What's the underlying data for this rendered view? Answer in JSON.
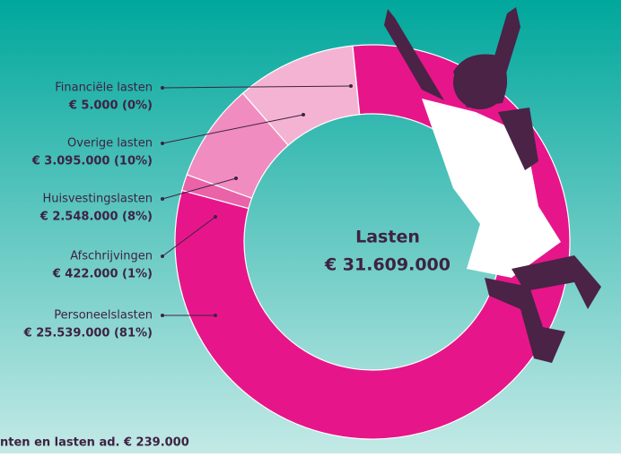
{
  "chart_data": {
    "type": "donut",
    "center_title": "Lasten",
    "total": 31609000,
    "total_label": "€ 31.609.000",
    "categories": [
      "Financiële lasten",
      "Overige lasten",
      "Huisvestingslasten",
      "Afschrijvingen",
      "Personeelslasten"
    ],
    "values": [
      5000,
      3095000,
      2548000,
      422000,
      25539000
    ],
    "value_labels": [
      "€ 5.000 (0%)",
      "€ 3.095.000 (10%)",
      "€ 2.548.000 (8%)",
      "€ 422.000 (1%)",
      "€ 25.539.000 (81%)"
    ],
    "colors": [
      "#fbd3e6",
      "#f5b3d3",
      "#f08cbf",
      "#ea63a9",
      "#e6168a"
    ],
    "annotation": "nten en lasten ad. € 239.000"
  }
}
